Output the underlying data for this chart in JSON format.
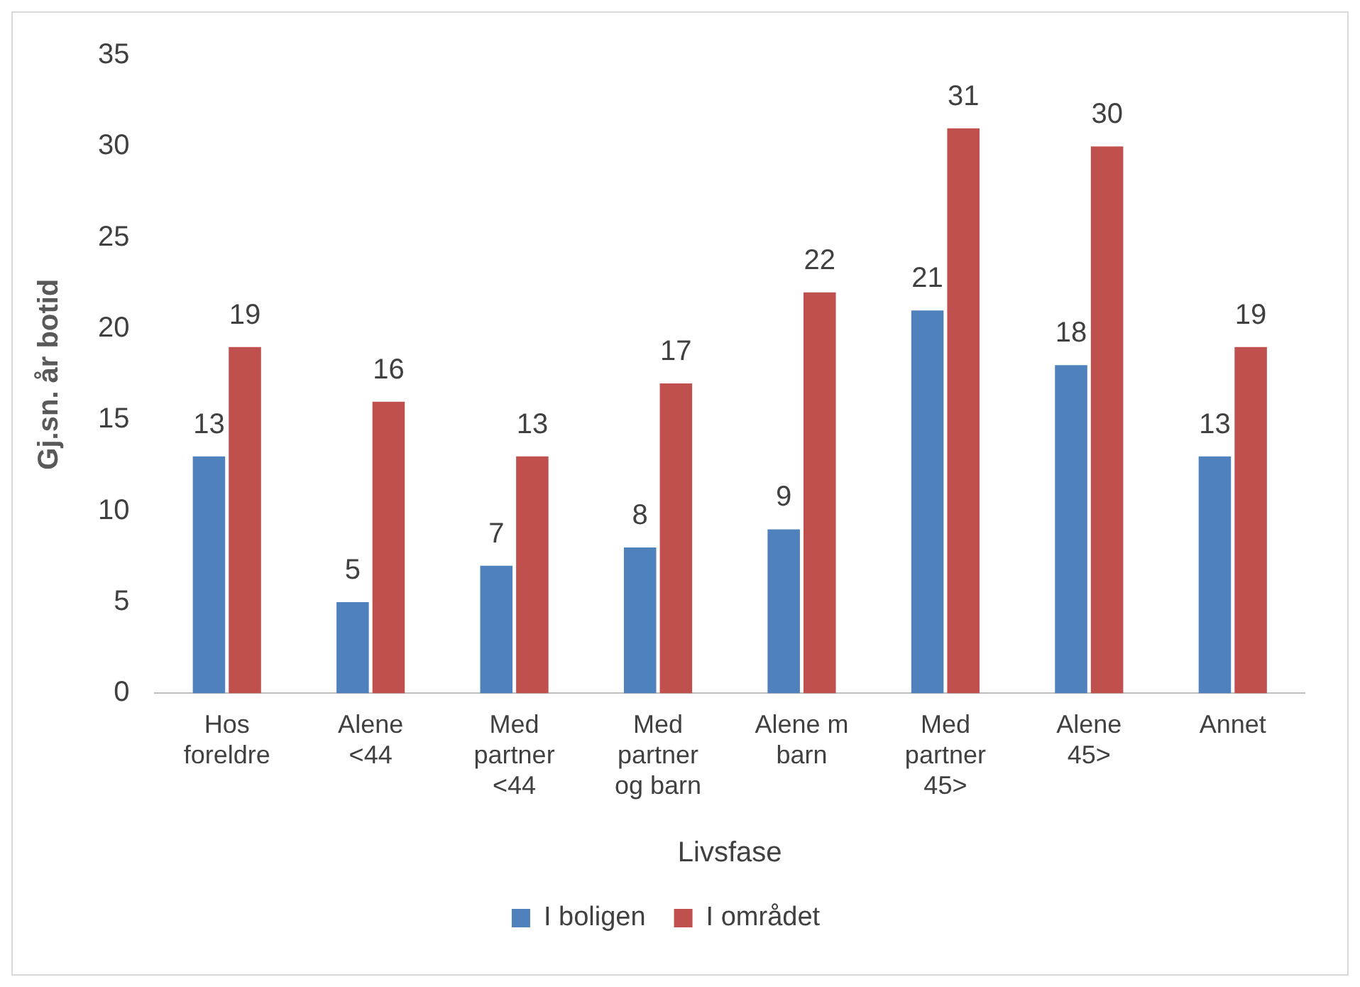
{
  "chart_data": {
    "type": "bar",
    "xlabel": "Livsfase",
    "ylabel": "Gj.sn. år botid",
    "categories": [
      "Hos foreldre",
      "Alene <44",
      "Med partner <44",
      "Med partner og barn",
      "Alene m barn",
      "Med partner 45>",
      "Alene 45>",
      "Annet"
    ],
    "series": [
      {
        "name": "I boligen",
        "color": "#4f81bd",
        "values": [
          13,
          5,
          7,
          8,
          9,
          21,
          18,
          13
        ]
      },
      {
        "name": "I området",
        "color": "#c0504d",
        "values": [
          19,
          16,
          13,
          17,
          22,
          31,
          30,
          19
        ]
      }
    ],
    "ylim": [
      0,
      35
    ],
    "yticks": [
      0,
      5,
      10,
      15,
      20,
      25,
      30,
      35
    ],
    "grid": false,
    "legend": "bottom",
    "data_labels": true
  }
}
